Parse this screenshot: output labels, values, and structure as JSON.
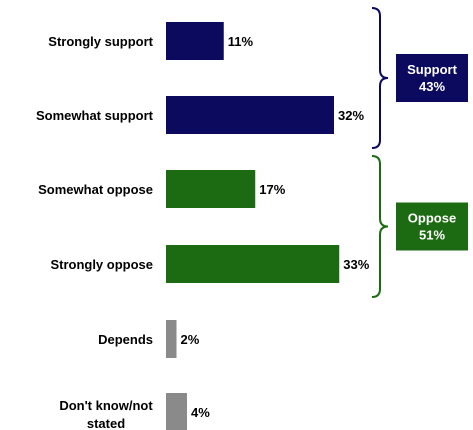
{
  "chart_data": {
    "type": "bar",
    "orientation": "horizontal",
    "categories": [
      "Strongly support",
      "Somewhat support",
      "Somewhat oppose",
      "Strongly oppose",
      "Depends",
      "Don't know/not stated"
    ],
    "values": [
      11,
      32,
      17,
      33,
      2,
      4
    ],
    "value_labels": [
      "11%",
      "32%",
      "17%",
      "33%",
      "2%",
      "4%"
    ],
    "bar_colors": [
      "#0c0a5e",
      "#0c0a5e",
      "#1c6b12",
      "#1c6b12",
      "#8a8a8a",
      "#8a8a8a"
    ],
    "xlim": [
      0,
      35
    ],
    "grid": false,
    "groups": [
      {
        "label": "Support",
        "value_label": "43%",
        "color": "#0c0a5e",
        "members": [
          0,
          1
        ]
      },
      {
        "label": "Oppose",
        "value_label": "51%",
        "color": "#1c6b12",
        "members": [
          2,
          3
        ]
      }
    ]
  }
}
